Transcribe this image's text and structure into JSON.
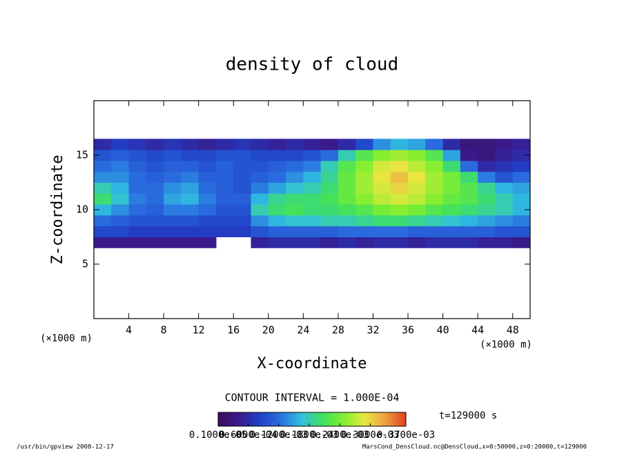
{
  "chart_data": {
    "type": "heatmap",
    "title": "density of cloud",
    "x_label": "X-coordinate",
    "y_label": "Z-coordinate",
    "x_unit": "(×1000 m)",
    "xlim": [
      0,
      50
    ],
    "ylim": [
      0,
      20
    ],
    "xticks": [
      4,
      8,
      12,
      16,
      20,
      24,
      28,
      32,
      36,
      40,
      44,
      48
    ],
    "yticks": [
      5,
      10,
      15
    ],
    "x": [
      1,
      3,
      5,
      7,
      9,
      11,
      13,
      15,
      17,
      19,
      21,
      23,
      25,
      27,
      29,
      31,
      33,
      35,
      37,
      39,
      41,
      43,
      45,
      47,
      49
    ],
    "y": [
      7,
      8,
      9,
      10,
      11,
      12,
      13,
      14,
      15,
      16
    ],
    "values": [
      [
        4e-05,
        4e-05,
        4e-05,
        4e-05,
        4e-05,
        4e-05,
        4e-05,
        null,
        null,
        5e-05,
        6e-05,
        6e-05,
        6e-05,
        5e-05,
        6e-05,
        5e-05,
        6e-05,
        6e-05,
        5e-05,
        6e-05,
        6e-05,
        6e-05,
        5e-05,
        5e-05,
        4e-05
      ],
      [
        9e-05,
        9e-05,
        8e-05,
        8e-05,
        8e-05,
        8e-05,
        8e-05,
        8e-05,
        8e-05,
        0.0001,
        0.00011,
        0.00011,
        0.00011,
        0.00011,
        0.00012,
        0.00012,
        0.00012,
        0.00012,
        0.00011,
        0.00011,
        0.00011,
        0.00011,
        0.00011,
        0.0001,
        0.0001
      ],
      [
        0.00012,
        0.00011,
        0.0001,
        0.0001,
        0.0001,
        0.0001,
        9e-05,
        9e-05,
        9e-05,
        0.00014,
        0.00016,
        0.00017,
        0.00017,
        0.00018,
        0.00018,
        0.00019,
        0.0002,
        0.0002,
        0.00019,
        0.00018,
        0.00017,
        0.00016,
        0.00015,
        0.00014,
        0.00013
      ],
      [
        0.00016,
        0.00014,
        0.00012,
        0.00011,
        0.00013,
        0.00013,
        0.00012,
        0.0001,
        0.0001,
        0.00018,
        0.0002,
        0.00021,
        0.0002,
        0.0002,
        0.00021,
        0.00022,
        0.00024,
        0.00025,
        0.00024,
        0.00022,
        0.00021,
        0.0002,
        0.00019,
        0.00018,
        0.00016
      ],
      [
        0.0002,
        0.00017,
        0.00013,
        0.00012,
        0.00015,
        0.00016,
        0.00013,
        0.00011,
        0.00011,
        0.00016,
        0.00019,
        0.0002,
        0.0002,
        0.00021,
        0.00023,
        0.00025,
        0.00027,
        0.00028,
        0.00027,
        0.00025,
        0.00023,
        0.00022,
        0.0002,
        0.00018,
        0.00016
      ],
      [
        0.00018,
        0.00016,
        0.00012,
        0.00012,
        0.00014,
        0.00015,
        0.00012,
        0.00011,
        0.0001,
        0.00013,
        0.00015,
        0.00017,
        0.00018,
        0.0002,
        0.00023,
        0.00026,
        0.00028,
        0.0003,
        0.00028,
        0.00026,
        0.00024,
        0.00022,
        0.00019,
        0.00016,
        0.00015
      ],
      [
        0.00014,
        0.00014,
        0.00012,
        0.00011,
        0.00012,
        0.00013,
        0.00011,
        0.00011,
        0.0001,
        0.00011,
        0.00012,
        0.00014,
        0.00016,
        0.00019,
        0.00023,
        0.00026,
        0.00029,
        0.00031,
        0.00029,
        0.00026,
        0.00024,
        0.0002,
        0.00013,
        0.0001,
        0.00012
      ],
      [
        0.00012,
        0.00013,
        0.00011,
        0.0001,
        0.00011,
        0.00011,
        0.0001,
        0.00011,
        0.0001,
        0.0001,
        0.00011,
        0.00012,
        0.00013,
        0.00018,
        0.00022,
        0.00025,
        0.00028,
        0.00029,
        0.00027,
        0.00025,
        0.0002,
        0.00012,
        6e-05,
        7e-05,
        8e-05
      ],
      [
        0.0001,
        0.00011,
        0.0001,
        9e-05,
        0.0001,
        9e-05,
        9e-05,
        0.0001,
        0.0001,
        9e-05,
        9e-05,
        9e-05,
        0.0001,
        0.00012,
        0.00018,
        0.00022,
        0.00025,
        0.00026,
        0.00025,
        0.00022,
        0.00015,
        4e-05,
        3e-05,
        5e-05,
        6e-05
      ],
      [
        6e-05,
        8e-05,
        7e-05,
        6e-05,
        7e-05,
        6e-05,
        5e-05,
        6e-05,
        7e-05,
        6e-05,
        5e-05,
        6e-05,
        5e-05,
        4e-05,
        6e-05,
        9e-05,
        0.00014,
        0.00016,
        0.00015,
        0.00012,
        6e-05,
        3e-05,
        3e-05,
        4e-05,
        5e-05
      ]
    ],
    "colormap": [
      "#3a0f5a",
      "#3a1a8c",
      "#2040c8",
      "#2a70e0",
      "#30c0e0",
      "#40e060",
      "#80ee30",
      "#e8e840",
      "#f0a040",
      "#e04020"
    ],
    "colorbar_lim": [
      1e-06,
      0.00037
    ],
    "colorbar_ticks": [
      {
        "value": 1e-06,
        "label": "0.1000e-05"
      },
      {
        "value": 6e-05,
        "label": "0.6000e-04"
      },
      {
        "value": 0.00012,
        "label": "0.1200e-03"
      },
      {
        "value": 0.00018,
        "label": "0.1800e-03"
      },
      {
        "value": 0.00024,
        "label": "0.2400e-03"
      },
      {
        "value": 0.0003,
        "label": "0.3000e-03"
      },
      {
        "value": 0.00037,
        "label": "0.3700e-03"
      }
    ],
    "contour_interval": "CONTOUR INTERVAL = 1.000E-04",
    "time_label": "t=129000 s",
    "footer_left": "/usr/bin/gpview  2008-12-17",
    "footer_right": "MarsCond_DensCloud.nc@DensCloud,x=0:50000,z=0:20000,t=129000"
  }
}
